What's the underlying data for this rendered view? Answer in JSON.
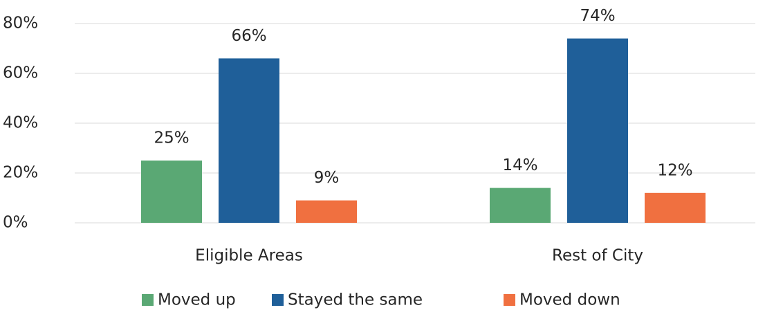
{
  "chart_data": {
    "type": "bar",
    "categories": [
      "Eligible Areas",
      "Rest of City"
    ],
    "series": [
      {
        "name": "Moved up",
        "color": "#5aa874",
        "values": [
          25,
          14
        ],
        "value_labels": [
          "25%",
          "14%"
        ]
      },
      {
        "name": "Stayed the same",
        "color": "#1f5f99",
        "values": [
          66,
          74
        ],
        "value_labels": [
          "66%",
          "74%"
        ]
      },
      {
        "name": "Moved down",
        "color": "#f07040",
        "values": [
          9,
          12
        ],
        "value_labels": [
          "9%",
          "12%"
        ]
      }
    ],
    "ylim": [
      0,
      80
    ],
    "yticks": [
      {
        "value": 0,
        "label": "0%"
      },
      {
        "value": 20,
        "label": "20%"
      },
      {
        "value": 40,
        "label": "40%"
      },
      {
        "value": 60,
        "label": "60%"
      },
      {
        "value": 80,
        "label": "80%"
      }
    ],
    "grid": true,
    "legend": "bottom"
  }
}
